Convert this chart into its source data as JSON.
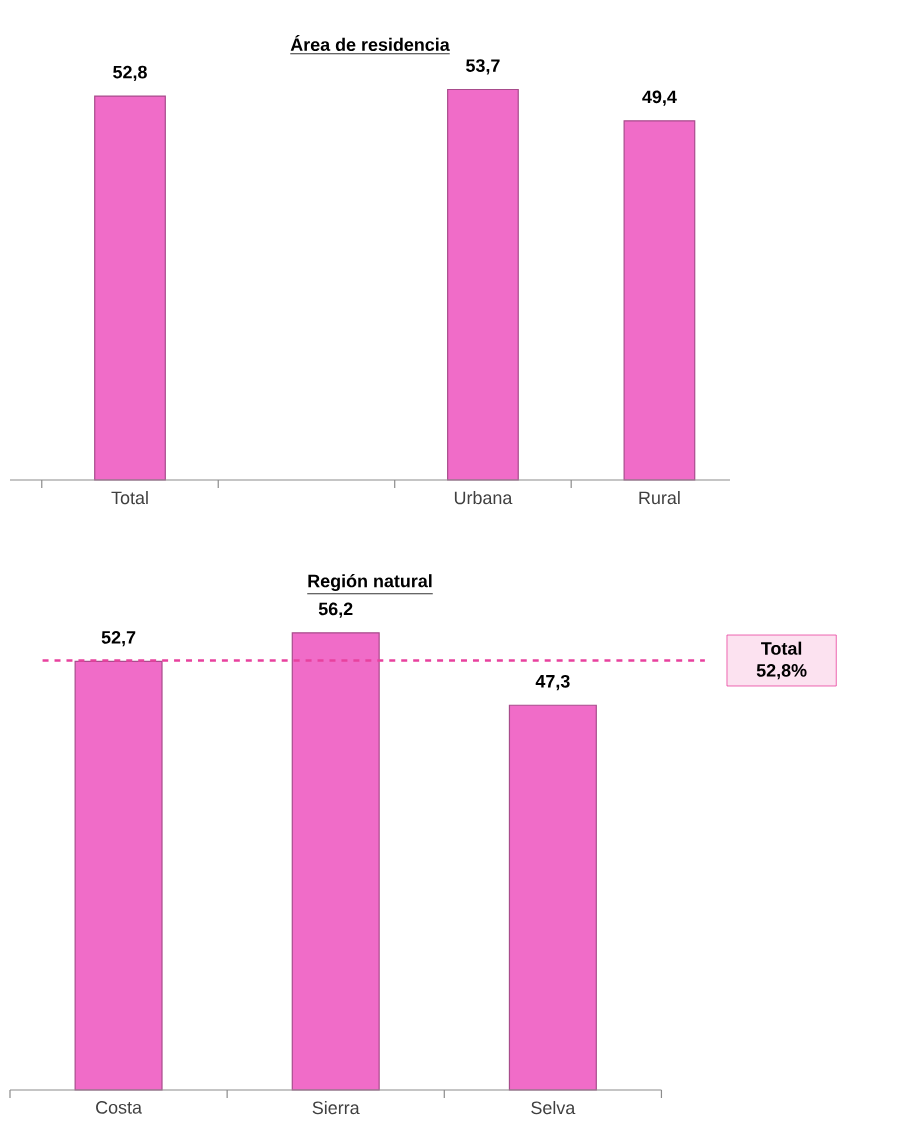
{
  "chart_data": [
    {
      "type": "bar",
      "title": "Área de residencia",
      "categories": [
        "Total",
        null,
        "Urbana",
        "Rural"
      ],
      "values": [
        52.8,
        null,
        53.7,
        49.4
      ],
      "value_labels": [
        "52,8",
        null,
        "53,7",
        "49,4"
      ],
      "color": "#f06cc8",
      "tick_labels": "x"
    },
    {
      "type": "bar",
      "title": "Región natural",
      "categories": [
        "Costa",
        "Sierra",
        "Selva"
      ],
      "values": [
        52.7,
        56.2,
        47.3
      ],
      "value_labels": [
        "52,7",
        "56,2",
        "47,3"
      ],
      "color": "#f06cc8",
      "tick_labels": "x",
      "ref_lines": [
        {
          "axis": "y",
          "value": 52.8,
          "label": "Total 52,8%",
          "color": "#e8419e",
          "line_style": "dashed"
        }
      ]
    }
  ]
}
